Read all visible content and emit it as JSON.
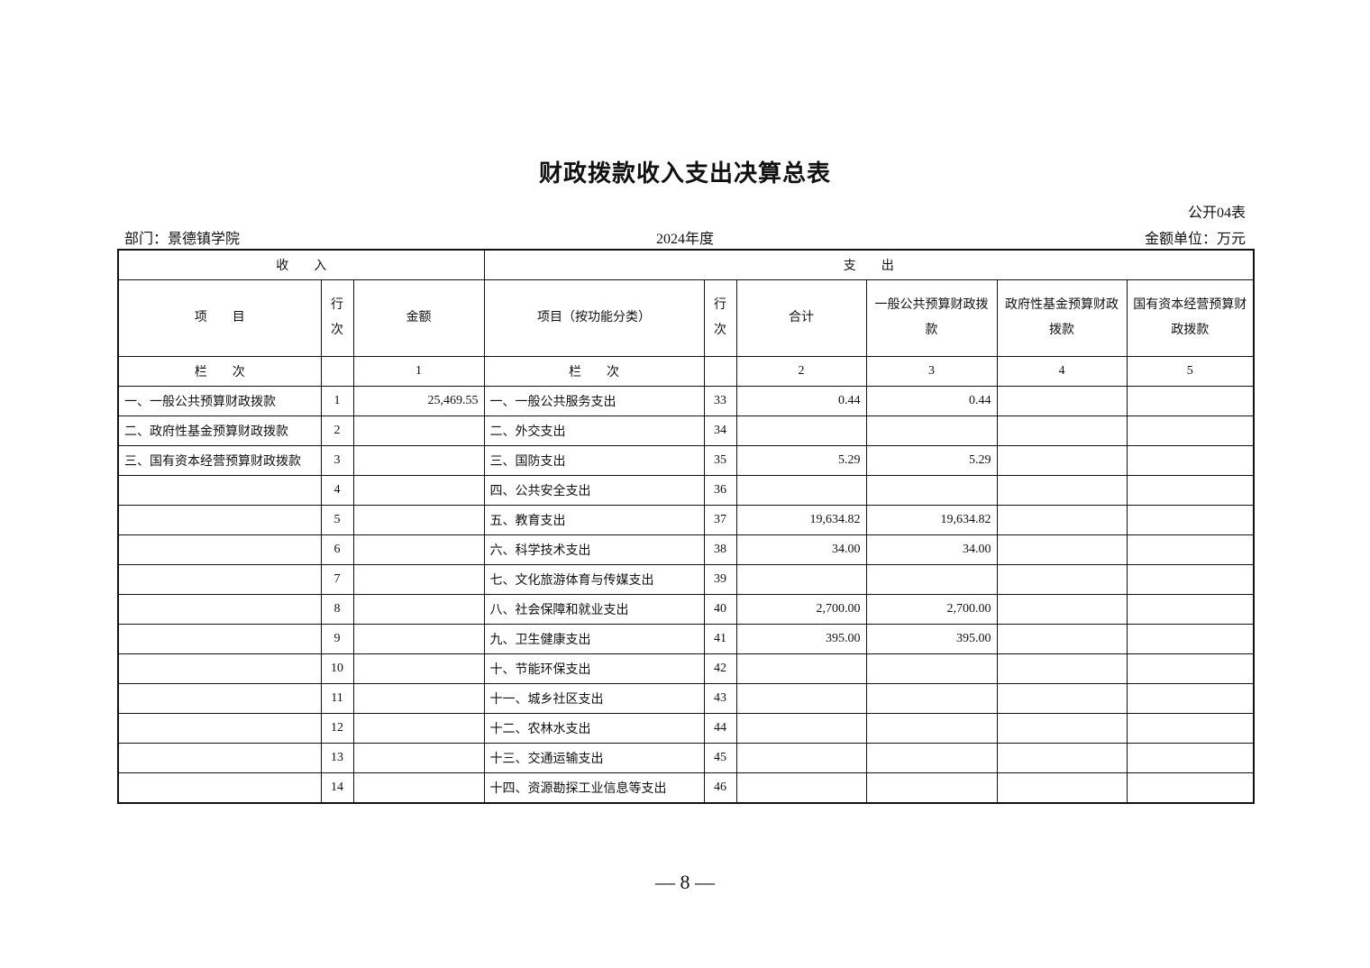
{
  "title": "财政拨款收入支出决算总表",
  "table_code": "公开04表",
  "department": "部门：景德镇学院",
  "year": "2024年度",
  "unit": "金额单位：万元",
  "headers": {
    "income": "收　　入",
    "expense": "支　　出",
    "item": "项　　目",
    "row_no": "行次",
    "amount": "金额",
    "exp_item": "项目（按功能分类）",
    "exp_row_no": "行次",
    "total": "合计",
    "general": "一般公共预算财政拨款",
    "fund": "政府性基金预算财政拨款",
    "state": "国有资本经营预算财政拨款",
    "col_label": "栏　　次",
    "exp_col_label": "栏　　次",
    "col1": "1",
    "col2": "2",
    "col3": "3",
    "col4": "4",
    "col5": "5"
  },
  "rows": [
    {
      "inc_item": "一、一般公共预算财政拨款",
      "inc_no": "1",
      "inc_amt": "25,469.55",
      "exp_item": "一、一般公共服务支出",
      "exp_no": "33",
      "total": "0.44",
      "general": "0.44",
      "fund": "",
      "state": ""
    },
    {
      "inc_item": "二、政府性基金预算财政拨款",
      "inc_no": "2",
      "inc_amt": "",
      "exp_item": "二、外交支出",
      "exp_no": "34",
      "total": "",
      "general": "",
      "fund": "",
      "state": ""
    },
    {
      "inc_item": "三、国有资本经营预算财政拨款",
      "inc_no": "3",
      "inc_amt": "",
      "exp_item": "三、国防支出",
      "exp_no": "35",
      "total": "5.29",
      "general": "5.29",
      "fund": "",
      "state": ""
    },
    {
      "inc_item": "",
      "inc_no": "4",
      "inc_amt": "",
      "exp_item": "四、公共安全支出",
      "exp_no": "36",
      "total": "",
      "general": "",
      "fund": "",
      "state": ""
    },
    {
      "inc_item": "",
      "inc_no": "5",
      "inc_amt": "",
      "exp_item": "五、教育支出",
      "exp_no": "37",
      "total": "19,634.82",
      "general": "19,634.82",
      "fund": "",
      "state": ""
    },
    {
      "inc_item": "",
      "inc_no": "6",
      "inc_amt": "",
      "exp_item": "六、科学技术支出",
      "exp_no": "38",
      "total": "34.00",
      "general": "34.00",
      "fund": "",
      "state": ""
    },
    {
      "inc_item": "",
      "inc_no": "7",
      "inc_amt": "",
      "exp_item": "七、文化旅游体育与传媒支出",
      "exp_no": "39",
      "total": "",
      "general": "",
      "fund": "",
      "state": ""
    },
    {
      "inc_item": "",
      "inc_no": "8",
      "inc_amt": "",
      "exp_item": "八、社会保障和就业支出",
      "exp_no": "40",
      "total": "2,700.00",
      "general": "2,700.00",
      "fund": "",
      "state": ""
    },
    {
      "inc_item": "",
      "inc_no": "9",
      "inc_amt": "",
      "exp_item": "九、卫生健康支出",
      "exp_no": "41",
      "total": "395.00",
      "general": "395.00",
      "fund": "",
      "state": ""
    },
    {
      "inc_item": "",
      "inc_no": "10",
      "inc_amt": "",
      "exp_item": "十、节能环保支出",
      "exp_no": "42",
      "total": "",
      "general": "",
      "fund": "",
      "state": ""
    },
    {
      "inc_item": "",
      "inc_no": "11",
      "inc_amt": "",
      "exp_item": "十一、城乡社区支出",
      "exp_no": "43",
      "total": "",
      "general": "",
      "fund": "",
      "state": ""
    },
    {
      "inc_item": "",
      "inc_no": "12",
      "inc_amt": "",
      "exp_item": "十二、农林水支出",
      "exp_no": "44",
      "total": "",
      "general": "",
      "fund": "",
      "state": ""
    },
    {
      "inc_item": "",
      "inc_no": "13",
      "inc_amt": "",
      "exp_item": "十三、交通运输支出",
      "exp_no": "45",
      "total": "",
      "general": "",
      "fund": "",
      "state": ""
    },
    {
      "inc_item": "",
      "inc_no": "14",
      "inc_amt": "",
      "exp_item": "十四、资源勘探工业信息等支出",
      "exp_no": "46",
      "total": "",
      "general": "",
      "fund": "",
      "state": ""
    }
  ],
  "page_number": "— 8 —"
}
